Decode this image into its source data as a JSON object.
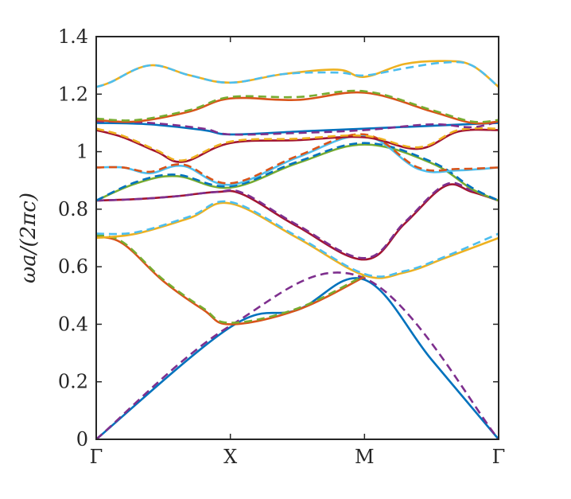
{
  "chart_data": {
    "type": "line",
    "title": "",
    "xlabel": "",
    "ylabel": "ωa/(2πc)",
    "x_ticks": [
      "Γ",
      "X",
      "M",
      "Γ"
    ],
    "x_tick_positions": [
      0,
      1,
      2,
      3
    ],
    "y_ticks": [
      "0",
      "0.2",
      "0.4",
      "0.6",
      "0.8",
      "1",
      "1.2",
      "1.4"
    ],
    "y_tick_values": [
      0,
      0.2,
      0.4,
      0.6,
      0.8,
      1.0,
      1.2,
      1.4
    ],
    "xlim": [
      0,
      3
    ],
    "ylim": [
      0,
      1.4
    ],
    "grid": false,
    "legend": "none",
    "series": [
      {
        "color": "#0072BD",
        "style": "solid",
        "x": [
          0,
          1,
          1.5,
          2,
          2.5,
          3
        ],
        "y": [
          0,
          0.39,
          0.45,
          0.555,
          0.277,
          0
        ]
      },
      {
        "color": "#7E2F8E",
        "style": "dashed",
        "x": [
          0,
          1,
          2,
          3
        ],
        "y": [
          0,
          0.395,
          0.56,
          0
        ]
      },
      {
        "color": "#D95319",
        "style": "solid",
        "x": [
          0,
          0.2,
          0.5,
          0.8,
          1,
          1.5,
          2
        ],
        "y": [
          0.705,
          0.68,
          0.55,
          0.45,
          0.4,
          0.45,
          0.565
        ]
      },
      {
        "color": "#77AC30",
        "style": "dashed",
        "x": [
          0,
          0.2,
          0.5,
          0.8,
          1,
          1.5,
          2
        ],
        "y": [
          0.71,
          0.685,
          0.555,
          0.455,
          0.405,
          0.455,
          0.57
        ]
      },
      {
        "color": "#EDB120",
        "style": "solid",
        "x": [
          0,
          0.3,
          0.7,
          1,
          1.5,
          2,
          2.3,
          2.6,
          3
        ],
        "y": [
          0.7,
          0.715,
          0.77,
          0.82,
          0.7,
          0.57,
          0.58,
          0.63,
          0.7
        ]
      },
      {
        "color": "#4DBEEE",
        "style": "dashed",
        "x": [
          0,
          0.3,
          0.7,
          1,
          1.5,
          2,
          2.3,
          2.6,
          3
        ],
        "y": [
          0.715,
          0.72,
          0.775,
          0.825,
          0.705,
          0.575,
          0.585,
          0.635,
          0.715
        ]
      },
      {
        "color": "#A2142F",
        "style": "solid",
        "x": [
          0,
          0.3,
          0.6,
          0.9,
          1.1,
          1.5,
          2,
          2.3,
          2.6,
          2.8,
          3
        ],
        "y": [
          0.83,
          0.835,
          0.845,
          0.86,
          0.85,
          0.74,
          0.625,
          0.75,
          0.88,
          0.86,
          0.83
        ]
      },
      {
        "color": "#7E2F8E",
        "style": "dashed",
        "x": [
          0,
          0.3,
          0.6,
          0.9,
          1.1,
          1.5,
          2,
          2.3,
          2.6,
          2.8,
          3
        ],
        "y": [
          0.83,
          0.835,
          0.845,
          0.86,
          0.855,
          0.745,
          0.63,
          0.755,
          0.885,
          0.865,
          0.83
        ]
      },
      {
        "color": "#77AC30",
        "style": "solid",
        "x": [
          0,
          0.3,
          0.6,
          1,
          1.5,
          2,
          2.5,
          2.8,
          3
        ],
        "y": [
          0.83,
          0.89,
          0.915,
          0.875,
          0.96,
          1.025,
          0.96,
          0.87,
          0.83
        ]
      },
      {
        "color": "#0072BD",
        "style": "dashed",
        "x": [
          0,
          0.3,
          0.6,
          1,
          1.5,
          2,
          2.5,
          2.8,
          3
        ],
        "y": [
          0.83,
          0.895,
          0.92,
          0.88,
          0.965,
          1.03,
          0.965,
          0.875,
          0.83
        ]
      },
      {
        "color": "#4DBEEE",
        "style": "solid",
        "x": [
          0,
          0.2,
          0.4,
          0.65,
          1,
          1.5,
          2,
          2.4,
          2.7,
          3
        ],
        "y": [
          0.945,
          0.945,
          0.925,
          0.95,
          0.885,
          0.98,
          1.055,
          0.94,
          0.935,
          0.945
        ]
      },
      {
        "color": "#D95319",
        "style": "dashed",
        "x": [
          0,
          0.2,
          0.4,
          0.65,
          1,
          1.5,
          2,
          2.4,
          2.7,
          3
        ],
        "y": [
          0.945,
          0.945,
          0.93,
          0.955,
          0.89,
          0.985,
          1.06,
          0.945,
          0.94,
          0.945
        ]
      },
      {
        "color": "#A2142F",
        "style": "solid",
        "x": [
          0,
          0.2,
          0.45,
          0.65,
          1,
          1.5,
          2,
          2.4,
          2.7,
          3
        ],
        "y": [
          1.075,
          1.05,
          1.0,
          0.965,
          1.03,
          1.04,
          1.05,
          1.01,
          1.07,
          1.075
        ]
      },
      {
        "color": "#EDB120",
        "style": "dashed",
        "x": [
          0,
          0.2,
          0.45,
          0.65,
          1,
          1.5,
          2,
          2.4,
          2.7,
          3
        ],
        "y": [
          1.08,
          1.055,
          1.005,
          0.97,
          1.035,
          1.045,
          1.055,
          1.015,
          1.075,
          1.08
        ]
      },
      {
        "color": "#0072BD",
        "style": "solid",
        "x": [
          0,
          0.4,
          0.8,
          1,
          1.5,
          2,
          2.5,
          3
        ],
        "y": [
          1.1,
          1.095,
          1.075,
          1.06,
          1.07,
          1.08,
          1.09,
          1.1
        ]
      },
      {
        "color": "#7E2F8E",
        "style": "dashed",
        "x": [
          0,
          0.4,
          0.8,
          1,
          1.5,
          2,
          2.5,
          2.8,
          3
        ],
        "y": [
          1.105,
          1.1,
          1.08,
          1.06,
          1.065,
          1.075,
          1.095,
          1.085,
          1.105
        ]
      },
      {
        "color": "#D95319",
        "style": "solid",
        "x": [
          0,
          0.3,
          0.7,
          1,
          1.5,
          2,
          2.5,
          2.8,
          3
        ],
        "y": [
          1.11,
          1.105,
          1.14,
          1.185,
          1.18,
          1.205,
          1.14,
          1.1,
          1.105
        ]
      },
      {
        "color": "#77AC30",
        "style": "dashed",
        "x": [
          0,
          0.3,
          0.7,
          1,
          1.5,
          2,
          2.5,
          2.8,
          3
        ],
        "y": [
          1.115,
          1.11,
          1.145,
          1.19,
          1.19,
          1.21,
          1.145,
          1.105,
          1.11
        ]
      },
      {
        "color": "#EDB120",
        "style": "solid",
        "x": [
          0,
          0.1,
          0.4,
          0.7,
          1,
          1.4,
          1.8,
          2,
          2.3,
          2.6,
          2.8,
          3
        ],
        "y": [
          1.225,
          1.24,
          1.3,
          1.265,
          1.24,
          1.27,
          1.285,
          1.26,
          1.305,
          1.315,
          1.3,
          1.225
        ]
      },
      {
        "color": "#4DBEEE",
        "style": "dashed",
        "x": [
          0,
          0.1,
          0.4,
          0.7,
          1,
          1.4,
          1.8,
          2,
          2.3,
          2.6,
          2.8,
          3
        ],
        "y": [
          1.225,
          1.24,
          1.3,
          1.265,
          1.24,
          1.27,
          1.275,
          1.265,
          1.29,
          1.31,
          1.3,
          1.225
        ]
      }
    ]
  }
}
